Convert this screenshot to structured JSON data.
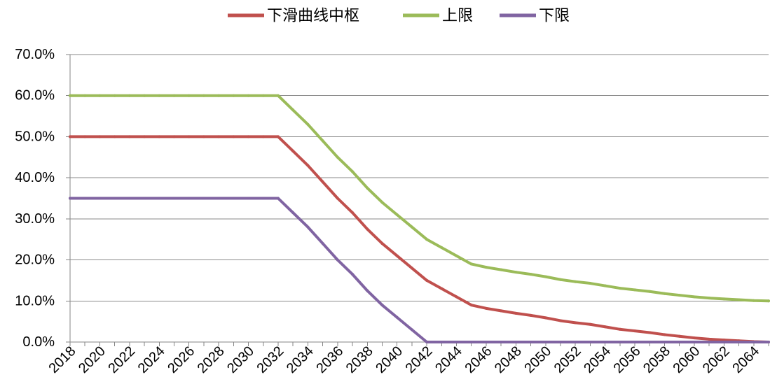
{
  "chart_data": {
    "type": "line",
    "legend": "top",
    "grid": "horizontal",
    "ylim": [
      0,
      70
    ],
    "yticks": [
      0,
      10,
      20,
      30,
      40,
      50,
      60,
      70
    ],
    "ytick_labels": [
      "0.0%",
      "10.0%",
      "20.0%",
      "30.0%",
      "40.0%",
      "50.0%",
      "60.0%",
      "70.0%"
    ],
    "x": [
      2018,
      2019,
      2020,
      2021,
      2022,
      2023,
      2024,
      2025,
      2026,
      2027,
      2028,
      2029,
      2030,
      2031,
      2032,
      2033,
      2034,
      2035,
      2036,
      2037,
      2038,
      2039,
      2040,
      2041,
      2042,
      2043,
      2044,
      2045,
      2046,
      2047,
      2048,
      2049,
      2050,
      2051,
      2052,
      2053,
      2054,
      2055,
      2056,
      2057,
      2058,
      2059,
      2060,
      2061,
      2062,
      2063,
      2064,
      2065
    ],
    "x_tick_labels": [
      "2018",
      "2020",
      "2022",
      "2024",
      "2026",
      "2028",
      "2030",
      "2032",
      "2034",
      "2036",
      "2038",
      "2040",
      "2042",
      "2044",
      "2046",
      "2048",
      "2050",
      "2052",
      "2054",
      "2056",
      "2058",
      "2060",
      "2062",
      "2064"
    ],
    "series": [
      {
        "name": "下滑曲线中枢",
        "color": "#C0504D",
        "values": [
          50,
          50,
          50,
          50,
          50,
          50,
          50,
          50,
          50,
          50,
          50,
          50,
          50,
          50,
          50,
          46.5,
          43,
          39,
          35,
          31.5,
          27.5,
          24,
          21,
          18,
          15,
          13,
          11,
          9,
          8.2,
          7.6,
          7.0,
          6.5,
          5.9,
          5.2,
          4.7,
          4.3,
          3.7,
          3.1,
          2.7,
          2.3,
          1.8,
          1.4,
          1.0,
          0.7,
          0.5,
          0.3,
          0.1,
          0.0
        ]
      },
      {
        "name": "上限",
        "color": "#9BBB59",
        "values": [
          60,
          60,
          60,
          60,
          60,
          60,
          60,
          60,
          60,
          60,
          60,
          60,
          60,
          60,
          60,
          56.5,
          53,
          49,
          45,
          41.5,
          37.5,
          34,
          31,
          28,
          25,
          23,
          21,
          19,
          18.2,
          17.6,
          17.0,
          16.5,
          15.9,
          15.2,
          14.7,
          14.3,
          13.7,
          13.1,
          12.7,
          12.3,
          11.8,
          11.4,
          11.0,
          10.7,
          10.5,
          10.3,
          10.1,
          10.0
        ]
      },
      {
        "name": "下限",
        "color": "#8064A2",
        "values": [
          35,
          35,
          35,
          35,
          35,
          35,
          35,
          35,
          35,
          35,
          35,
          35,
          35,
          35,
          35,
          31.5,
          28,
          24,
          20,
          16.5,
          12.5,
          9,
          6,
          3,
          0,
          0,
          0,
          0,
          0,
          0,
          0,
          0,
          0,
          0,
          0,
          0,
          0,
          0,
          0,
          0,
          0,
          0,
          0,
          0,
          0,
          0,
          0,
          0
        ]
      }
    ]
  }
}
